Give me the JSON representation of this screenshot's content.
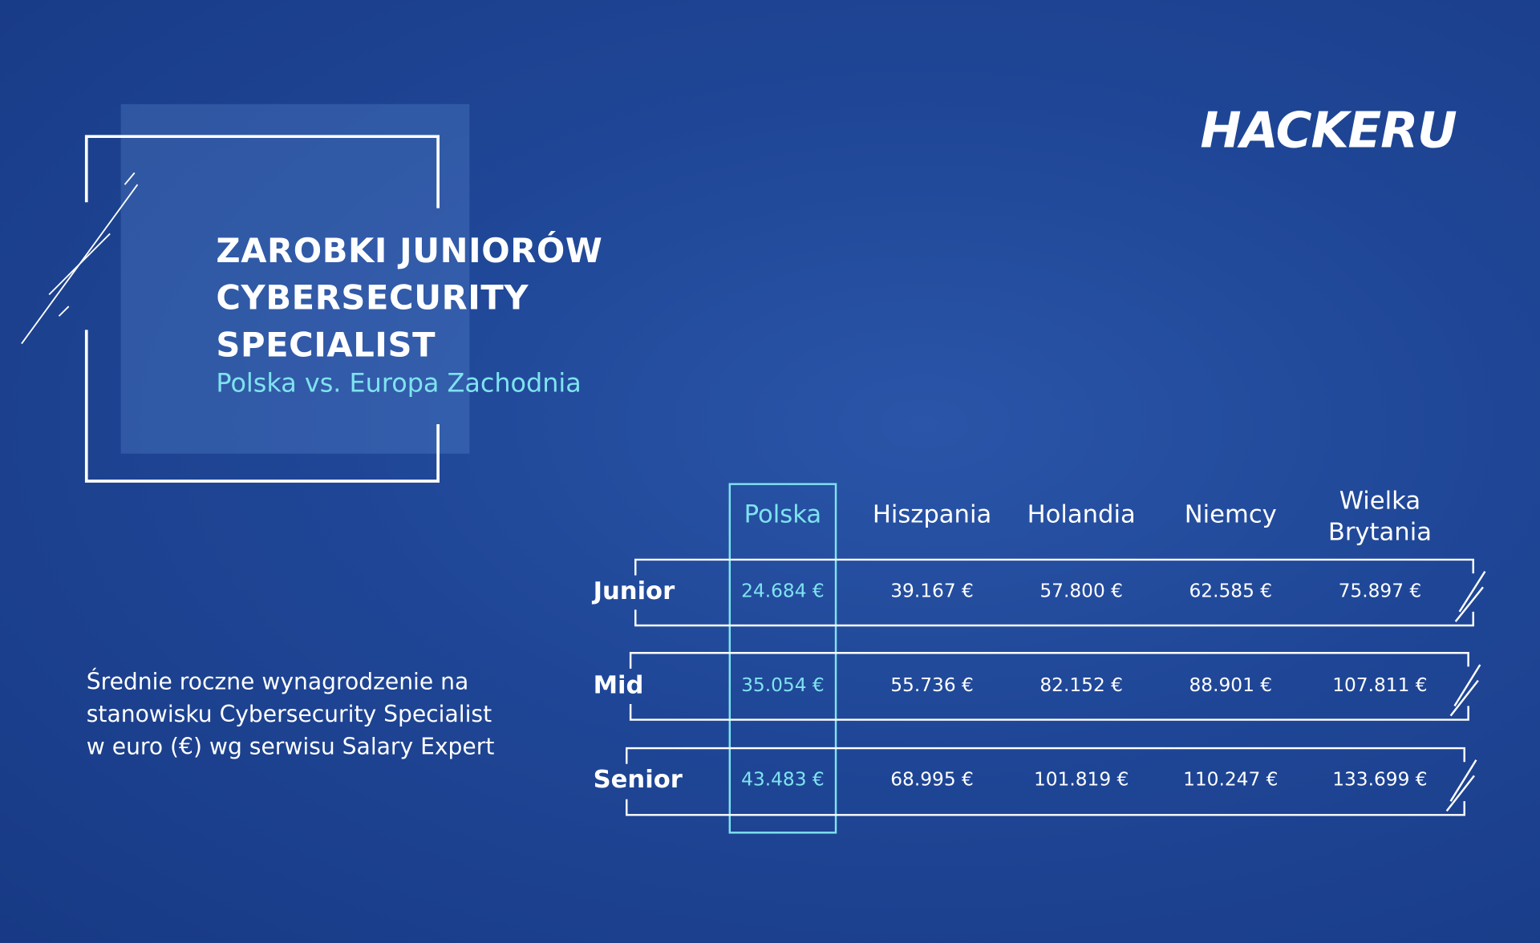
{
  "header": {
    "title_lines": [
      "ZAROBKI JUNIORÓW",
      "CYBERSECURITY",
      "SPECIALIST"
    ],
    "subtitle": "Polska vs. Europa Zachodnia"
  },
  "logo": {
    "text": "HACKERU"
  },
  "description": [
    "Średnie roczne wynagrodzenie na",
    "stanowisku Cybersecurity Specialist",
    "w euro (€) wg serwisu Salary Expert"
  ],
  "table": {
    "columns": [
      "Polska",
      "Hiszpania",
      "Holandia",
      "Niemcy",
      "Wielka Brytania"
    ],
    "rows": [
      {
        "label": "Junior",
        "cells": [
          "24.684 €",
          "39.167 €",
          "57.800 €",
          "62.585 €",
          "75.897 €"
        ]
      },
      {
        "label": "Mid",
        "cells": [
          "35.054 €",
          "55.736 €",
          "82.152 €",
          "88.901 €",
          "107.811 €"
        ]
      },
      {
        "label": "Senior",
        "cells": [
          "43.483 €",
          "68.995 €",
          "101.819 €",
          "110.247 €",
          "133.699 €"
        ]
      }
    ]
  }
}
